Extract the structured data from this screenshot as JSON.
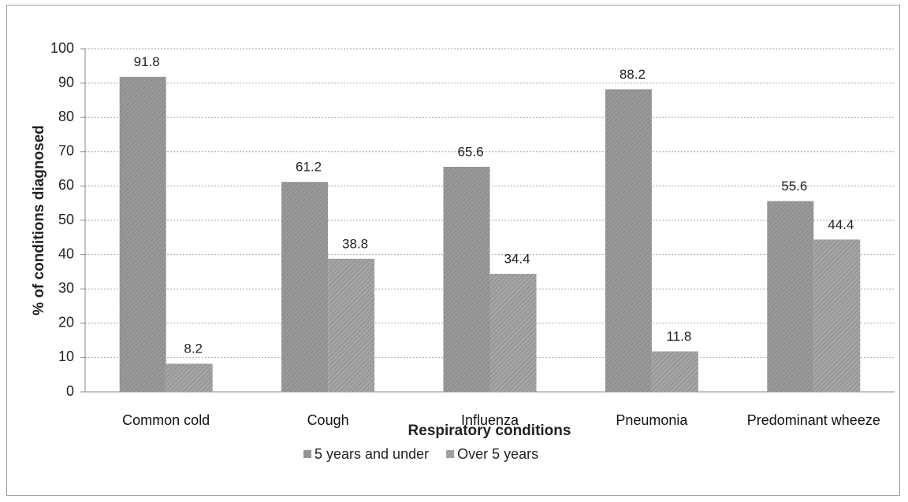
{
  "chart_data": {
    "type": "bar",
    "categories": [
      "Common cold",
      "Cough",
      "Influenza",
      "Pneumonia",
      "Predominant wheeze"
    ],
    "series": [
      {
        "name": "5 years and under",
        "color": "#9a9a9a",
        "values": [
          91.8,
          61.2,
          65.6,
          88.2,
          55.6
        ]
      },
      {
        "name": "Over 5 years",
        "color": "#a6a6a6",
        "values": [
          8.2,
          38.8,
          34.4,
          11.8,
          44.4
        ]
      }
    ],
    "x_label": "Respiratory conditions",
    "y_label": "% of conditions diagnosed",
    "ylim": [
      0,
      100
    ],
    "yticks": [
      0,
      10,
      20,
      30,
      40,
      50,
      60,
      70,
      80,
      90,
      100
    ],
    "grid": true,
    "legend": "bottom"
  }
}
